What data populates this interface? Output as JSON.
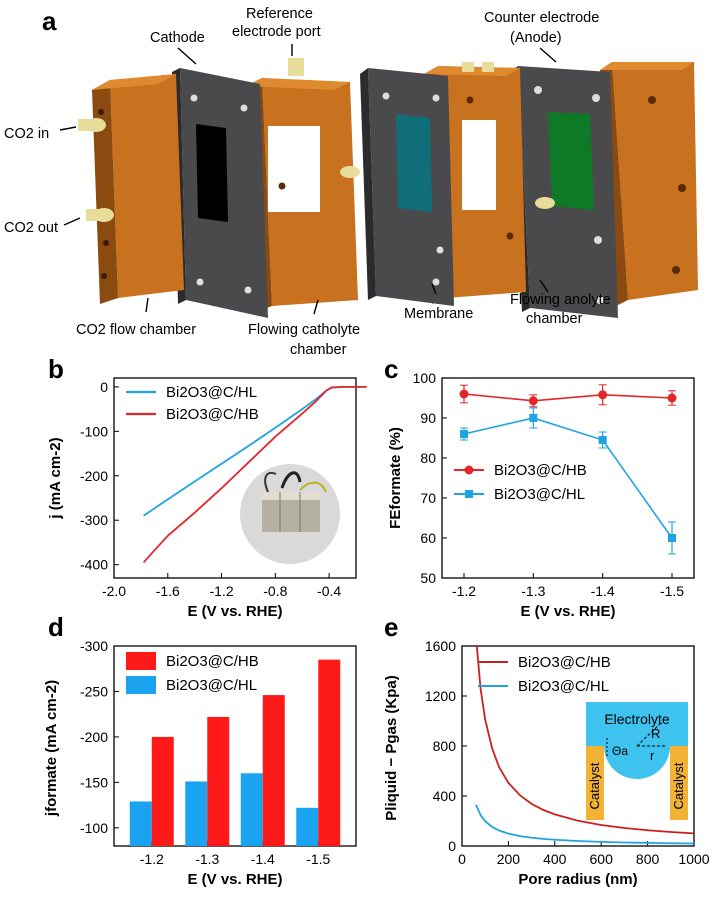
{
  "panel_a": {
    "label": "a",
    "labels": {
      "cathode": "Cathode",
      "reference_line1": "Reference",
      "reference_line2": "electrode port",
      "counter_line1": "Counter electrode",
      "counter_line2": "(Anode)",
      "co2_in": "CO2 in",
      "co2_out": "CO2 out",
      "co2_flow_chamber": "CO2 flow chamber",
      "flowing_catholyte_line1": "Flowing catholyte",
      "flowing_catholyte_line2": "chamber",
      "membrane": "Membrane",
      "flowing_anolyte_line1": "Flowing anolyte",
      "flowing_anolyte_line2": "chamber"
    },
    "colors": {
      "chamber": "#c8711e",
      "plate": "#4a4a4c",
      "cathode_window": "#000000",
      "membrane_window": "#0f6e78",
      "anode_window": "#0e7a28",
      "fitting": "#e8dc9a"
    }
  },
  "chart_data": [
    {
      "panel": "b",
      "type": "line",
      "xlabel": "E (V vs. RHE)",
      "ylabel": "j (mA cm-2)",
      "xlim": [
        -2.0,
        -0.2
      ],
      "ylim": [
        -430,
        20
      ],
      "xticks": [
        "-2.0",
        "-1.6",
        "-1.2",
        "-0.8",
        "-0.4"
      ],
      "yticks": [
        "0",
        "-100",
        "-200",
        "-300",
        "-400"
      ],
      "legend_position": "top-left",
      "series": [
        {
          "name": "Bi2O3@C/HL",
          "color": "#1ea4e0",
          "x": [
            -1.78,
            -1.6,
            -1.4,
            -1.2,
            -1.0,
            -0.8,
            -0.6,
            -0.5,
            -0.42,
            -0.38,
            -0.3,
            -0.2,
            -0.12
          ],
          "y": [
            -290,
            -253,
            -213,
            -173,
            -133,
            -92,
            -50,
            -28,
            -8,
            -2,
            0,
            0,
            0
          ]
        },
        {
          "name": "Bi2O3@C/HB",
          "color": "#e3262a",
          "x": [
            -1.78,
            -1.7,
            -1.6,
            -1.4,
            -1.2,
            -1.0,
            -0.8,
            -0.6,
            -0.5,
            -0.42,
            -0.38,
            -0.3,
            -0.2,
            -0.12
          ],
          "y": [
            -395,
            -368,
            -335,
            -283,
            -228,
            -170,
            -112,
            -60,
            -33,
            -8,
            -1,
            0,
            0,
            0
          ]
        }
      ]
    },
    {
      "panel": "c",
      "type": "line",
      "xlabel": "E (V vs. RHE)",
      "ylabel": "FEformate (%)",
      "categories": [
        "-1.2",
        "-1.3",
        "-1.4",
        "-1.5"
      ],
      "ylim": [
        50,
        100
      ],
      "yticks": [
        "50",
        "60",
        "70",
        "80",
        "90",
        "100"
      ],
      "legend_position": "bottom-left",
      "series": [
        {
          "name": "Bi2O3@C/HB",
          "color": "#e3262a",
          "marker": "circle",
          "values": [
            96,
            94.3,
            95.8,
            95
          ],
          "errors": [
            2.2,
            1.5,
            2.5,
            1.8
          ]
        },
        {
          "name": "Bi2O3@C/HL",
          "color": "#1ea4e0",
          "marker": "square",
          "values": [
            86,
            90,
            84.5,
            60
          ],
          "errors": [
            1.5,
            2.5,
            2.0,
            4.0
          ]
        }
      ]
    },
    {
      "panel": "d",
      "type": "bar",
      "xlabel": "E (V vs. RHE)",
      "ylabel": "jformate (mA cm-2)",
      "categories": [
        "-1.2",
        "-1.3",
        "-1.4",
        "-1.5"
      ],
      "ylim": [
        -80,
        -300
      ],
      "yticks": [
        "-300",
        "-250",
        "-200",
        "-150",
        "-100"
      ],
      "legend_position": "top-left",
      "series": [
        {
          "name": "Bi2O3@C/HB",
          "color": "#ff1a1a",
          "values": [
            -200,
            -222,
            -246,
            -285
          ]
        },
        {
          "name": "Bi2O3@C/HL",
          "color": "#1aa3f0",
          "values": [
            -129,
            -151,
            -160,
            -122
          ]
        }
      ]
    },
    {
      "panel": "e",
      "type": "line",
      "xlabel": "Pore radius (nm)",
      "ylabel": "Pliquid − Pgas (Kpa)",
      "xlim": [
        0,
        1000
      ],
      "ylim": [
        0,
        1600
      ],
      "xticks": [
        "0",
        "200",
        "400",
        "600",
        "800",
        "1000"
      ],
      "yticks": [
        "0",
        "400",
        "800",
        "1200",
        "1600"
      ],
      "legend_position": "top-right",
      "series": [
        {
          "name": "Bi2O3@C/HB",
          "color": "#cc1f1f",
          "x": [
            60,
            80,
            100,
            130,
            160,
            200,
            250,
            300,
            350,
            400,
            500,
            600,
            700,
            800,
            900,
            1000
          ],
          "y": [
            1680,
            1260,
            1010,
            780,
            630,
            505,
            405,
            337,
            289,
            253,
            202,
            168,
            144,
            126,
            112,
            101
          ]
        },
        {
          "name": "Bi2O3@C/HL",
          "color": "#1ea4e0",
          "x": [
            60,
            80,
            100,
            130,
            160,
            200,
            250,
            300,
            350,
            400,
            500,
            600,
            700,
            800,
            900,
            1000
          ],
          "y": [
            330,
            248,
            198,
            152,
            124,
            99,
            79,
            66,
            57,
            50,
            40,
            33,
            28,
            25,
            22,
            20
          ]
        }
      ],
      "inset": {
        "electrolyte": "Electrolyte",
        "catalyst_left": "Catalyst",
        "catalyst_right": "Catalyst",
        "R": "R",
        "r": "r",
        "theta": "Θa"
      }
    }
  ]
}
